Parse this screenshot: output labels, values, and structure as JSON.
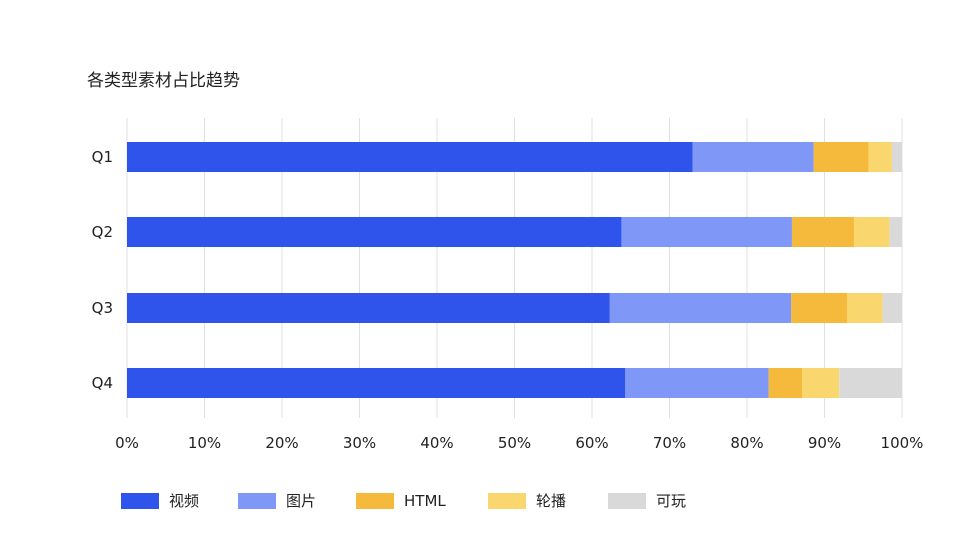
{
  "chart_data": {
    "type": "bar",
    "orientation": "horizontal",
    "stacked": true,
    "normalized": true,
    "title": "各类型素材占比趋势",
    "categories": [
      "Q1",
      "Q2",
      "Q3",
      "Q4"
    ],
    "series": [
      {
        "name": "视频",
        "color": "#2f54eb",
        "values": [
          73.0,
          63.8,
          62.3,
          64.3
        ]
      },
      {
        "name": "图片",
        "color": "#7f98f7",
        "values": [
          15.6,
          22.0,
          23.4,
          18.5
        ]
      },
      {
        "name": "HTML",
        "color": "#f5b93c",
        "values": [
          7.1,
          8.0,
          7.2,
          4.3
        ]
      },
      {
        "name": "轮播",
        "color": "#fad66e",
        "values": [
          3.0,
          4.6,
          4.6,
          4.8
        ]
      },
      {
        "name": "可玩",
        "color": "#d9d9d9",
        "values": [
          1.3,
          1.6,
          2.5,
          8.1
        ]
      }
    ],
    "xlim": [
      0,
      100
    ],
    "xticks": [
      "0%",
      "10%",
      "20%",
      "30%",
      "40%",
      "50%",
      "60%",
      "70%",
      "80%",
      "90%",
      "100%"
    ],
    "grid": true,
    "legend_position": "bottom"
  }
}
